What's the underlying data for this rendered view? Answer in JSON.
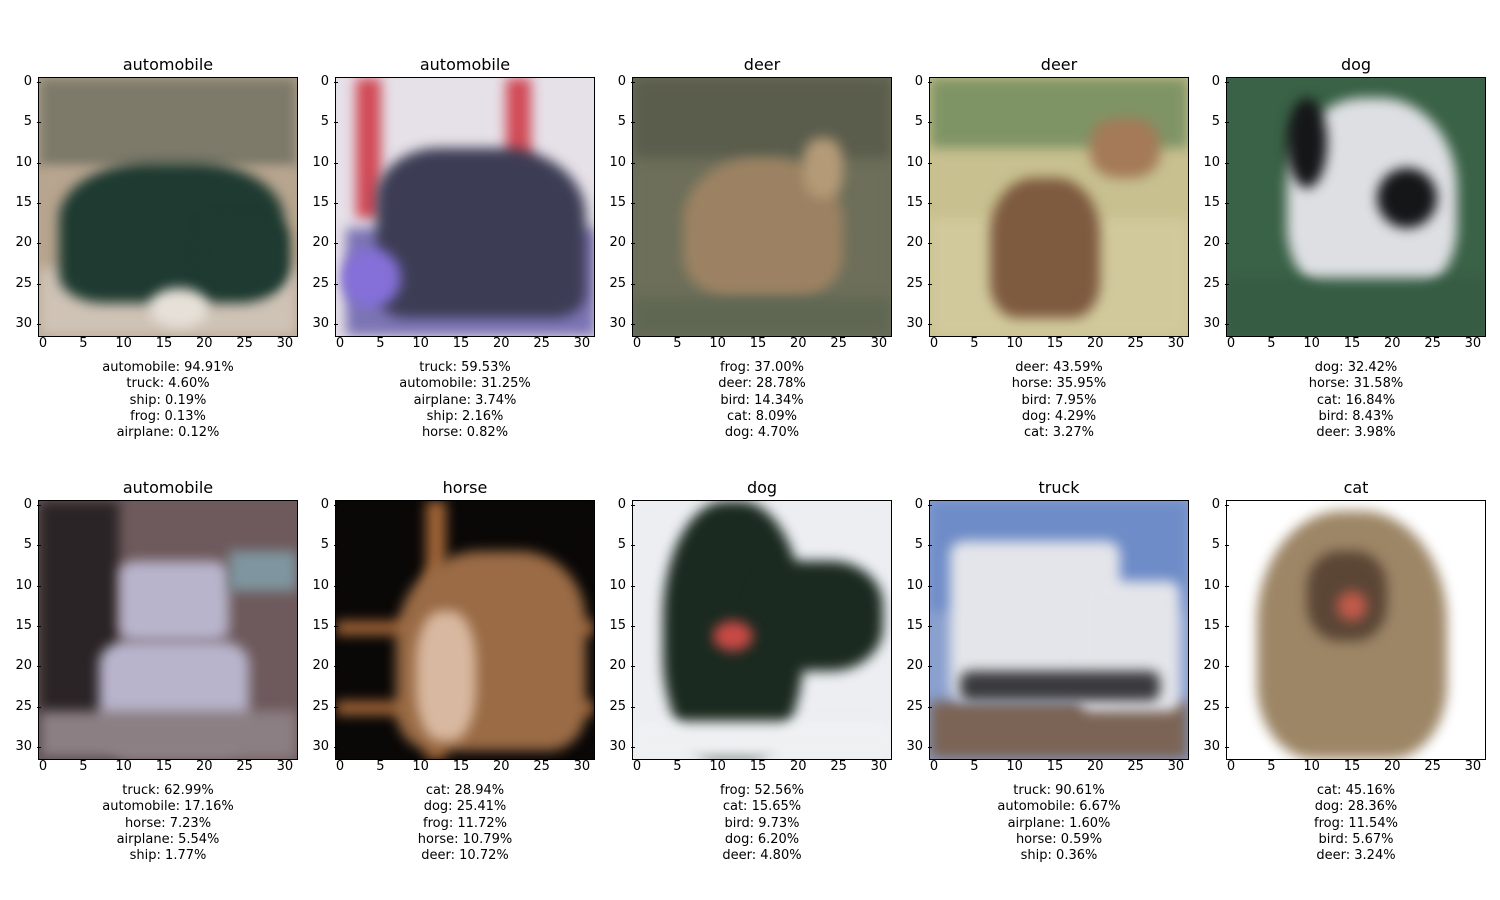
{
  "panels": [
    {
      "title": "automobile",
      "predictions": [
        "automobile: 94.91%",
        "truck: 4.60%",
        "ship: 0.19%",
        "frog: 0.13%",
        "airplane: 0.12%"
      ]
    },
    {
      "title": "automobile",
      "predictions": [
        "truck: 59.53%",
        "automobile: 31.25%",
        "airplane: 3.74%",
        "ship: 2.16%",
        "horse: 0.82%"
      ]
    },
    {
      "title": "deer",
      "predictions": [
        "frog: 37.00%",
        "deer: 28.78%",
        "bird: 14.34%",
        "cat: 8.09%",
        "dog: 4.70%"
      ]
    },
    {
      "title": "deer",
      "predictions": [
        "deer: 43.59%",
        "horse: 35.95%",
        "bird: 7.95%",
        "dog: 4.29%",
        "cat: 3.27%"
      ]
    },
    {
      "title": "dog",
      "predictions": [
        "dog: 32.42%",
        "horse: 31.58%",
        "cat: 16.84%",
        "bird: 8.43%",
        "deer: 3.98%"
      ]
    },
    {
      "title": "automobile",
      "predictions": [
        "truck: 62.99%",
        "automobile: 17.16%",
        "horse: 7.23%",
        "airplane: 5.54%",
        "ship: 1.77%"
      ]
    },
    {
      "title": "horse",
      "predictions": [
        "cat: 28.94%",
        "dog: 25.41%",
        "frog: 11.72%",
        "horse: 10.79%",
        "deer: 10.72%"
      ]
    },
    {
      "title": "dog",
      "predictions": [
        "frog: 52.56%",
        "cat: 15.65%",
        "bird: 9.73%",
        "dog: 6.20%",
        "deer: 4.80%"
      ]
    },
    {
      "title": "truck",
      "predictions": [
        "truck: 90.61%",
        "automobile: 6.67%",
        "airplane: 1.60%",
        "horse: 0.59%",
        "ship: 0.36%"
      ]
    },
    {
      "title": "cat",
      "predictions": [
        "cat: 45.16%",
        "dog: 28.36%",
        "frog: 11.54%",
        "bird: 5.67%",
        "deer: 3.24%"
      ]
    }
  ],
  "axis_ticks": {
    "x": [
      "0",
      "5",
      "10",
      "15",
      "20",
      "25",
      "30"
    ],
    "y": [
      "0",
      "5",
      "10",
      "15",
      "20",
      "25",
      "30"
    ],
    "max": 32
  },
  "images": [
    {
      "subject": "dark green vintage car",
      "palette": {
        "bg": "#b7a58f",
        "top": "#7d7a6a",
        "main": "#1e3a31",
        "ground": "#cfc3b6",
        "accent": "#e6e0d8"
      }
    },
    {
      "subject": "purple-lit modern car",
      "palette": {
        "bg": "#e6e0e8",
        "top": "#d04a56",
        "main": "#3c3d55",
        "ground": "#7c74b4",
        "accent": "#8470d8"
      }
    },
    {
      "subject": "deer in brush",
      "palette": {
        "bg": "#6d6f5a",
        "top": "#5b5d4c",
        "main": "#9c8262",
        "ground": "#5f6753",
        "accent": "#b59a77"
      }
    },
    {
      "subject": "deer in meadow",
      "palette": {
        "bg": "#c8c08f",
        "top": "#7f9465",
        "main": "#7e5a3f",
        "ground": "#d1c99c",
        "accent": "#a47a58"
      }
    },
    {
      "subject": "black and white dog on grass",
      "palette": {
        "bg": "#3a6247",
        "top": "#43694e",
        "main": "#dedfe3",
        "ground": "#365c43",
        "accent": "#151618"
      }
    },
    {
      "subject": "damaged vehicle",
      "palette": {
        "bg": "#6e5a5c",
        "top": "#2b2426",
        "main": "#b8b4cc",
        "ground": "#8b7f83",
        "accent": "#7f96a0"
      }
    },
    {
      "subject": "horse behind fence",
      "palette": {
        "bg": "#0a0807",
        "top": "#0a0807",
        "main": "#9a6b45",
        "ground": "#a06437",
        "accent": "#d8b8a0"
      }
    },
    {
      "subject": "black fluffy dog on white",
      "palette": {
        "bg": "#eceef2",
        "top": "#e5e8ec",
        "main": "#1b2a20",
        "ground": "#eef0f2",
        "accent": "#c94a46"
      }
    },
    {
      "subject": "white truck",
      "palette": {
        "bg": "#8aa0cf",
        "top": "#6e8cc8",
        "main": "#e4e5ea",
        "ground": "#7b6455",
        "accent": "#3a3a3e"
      }
    },
    {
      "subject": "tabby cat on white",
      "palette": {
        "bg": "#ffffff",
        "top": "#ffffff",
        "main": "#9d8666",
        "ground": "#f5f2ee",
        "accent": "#5b4636"
      }
    }
  ]
}
